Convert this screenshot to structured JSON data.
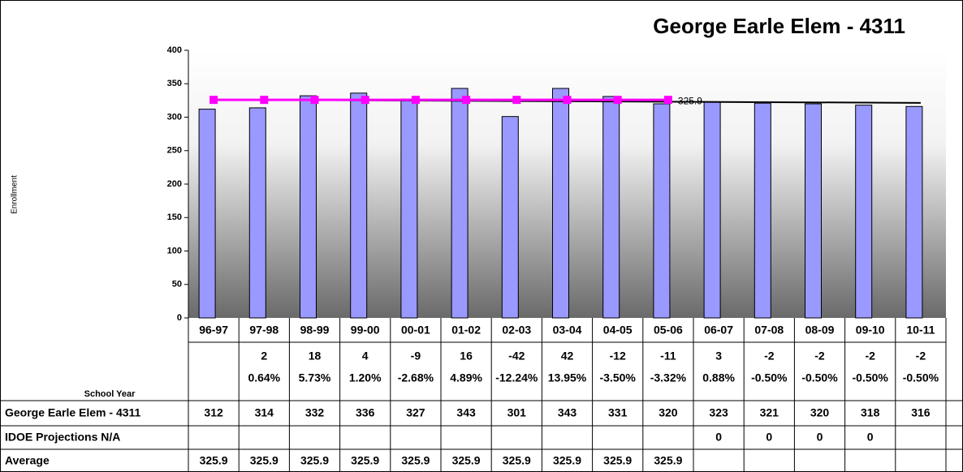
{
  "chart_data": {
    "type": "bar",
    "title": "George Earle Elem - 4311",
    "y_label": "Enrollment",
    "x_label": "School Year",
    "categories": [
      "96-97",
      "97-98",
      "98-99",
      "99-00",
      "00-01",
      "01-02",
      "02-03",
      "03-04",
      "04-05",
      "05-06",
      "06-07",
      "07-08",
      "08-09",
      "09-10",
      "10-11"
    ],
    "ylim": [
      0,
      400
    ],
    "yticks": [
      0,
      50,
      100,
      150,
      200,
      250,
      300,
      350,
      400
    ],
    "series": [
      {
        "name": "George Earle Elem - 4311",
        "type": "bar",
        "color": "#9999ff",
        "values": [
          312,
          314,
          332,
          336,
          327,
          343,
          301,
          343,
          331,
          320,
          323,
          321,
          320,
          318,
          316
        ]
      },
      {
        "name": "IDOE Projections N/A",
        "type": "bar",
        "color": "#993366",
        "values": [
          null,
          null,
          null,
          null,
          null,
          null,
          null,
          null,
          null,
          null,
          0,
          0,
          0,
          0,
          null
        ]
      },
      {
        "name": "Average",
        "type": "line",
        "color": "#ff00ff",
        "values": [
          325.9,
          325.9,
          325.9,
          325.9,
          325.9,
          325.9,
          325.9,
          325.9,
          325.9,
          325.9,
          null,
          null,
          null,
          null,
          null
        ]
      }
    ],
    "change": [
      null,
      2,
      18,
      4,
      -9,
      16,
      -42,
      42,
      -12,
      -11,
      3,
      -2,
      -2,
      -2,
      -2
    ],
    "pct_change": {
      "values": [
        null,
        0.64,
        5.73,
        1.2,
        -2.68,
        4.89,
        -12.24,
        13.95,
        -3.5,
        -3.32,
        0.88,
        -0.5,
        -0.5,
        -0.5,
        -0.5
      ],
      "value_labels": [
        null,
        "0.64%",
        "5.73%",
        "1.20%",
        "-2.68%",
        "4.89%",
        "-12.24%",
        "13.95%",
        "-3.50%",
        "-3.32%",
        "0.88%",
        "-0.50%",
        "-0.50%",
        "-0.50%",
        "-0.50%"
      ]
    },
    "trendline": true,
    "trendline_color": "#000000"
  }
}
